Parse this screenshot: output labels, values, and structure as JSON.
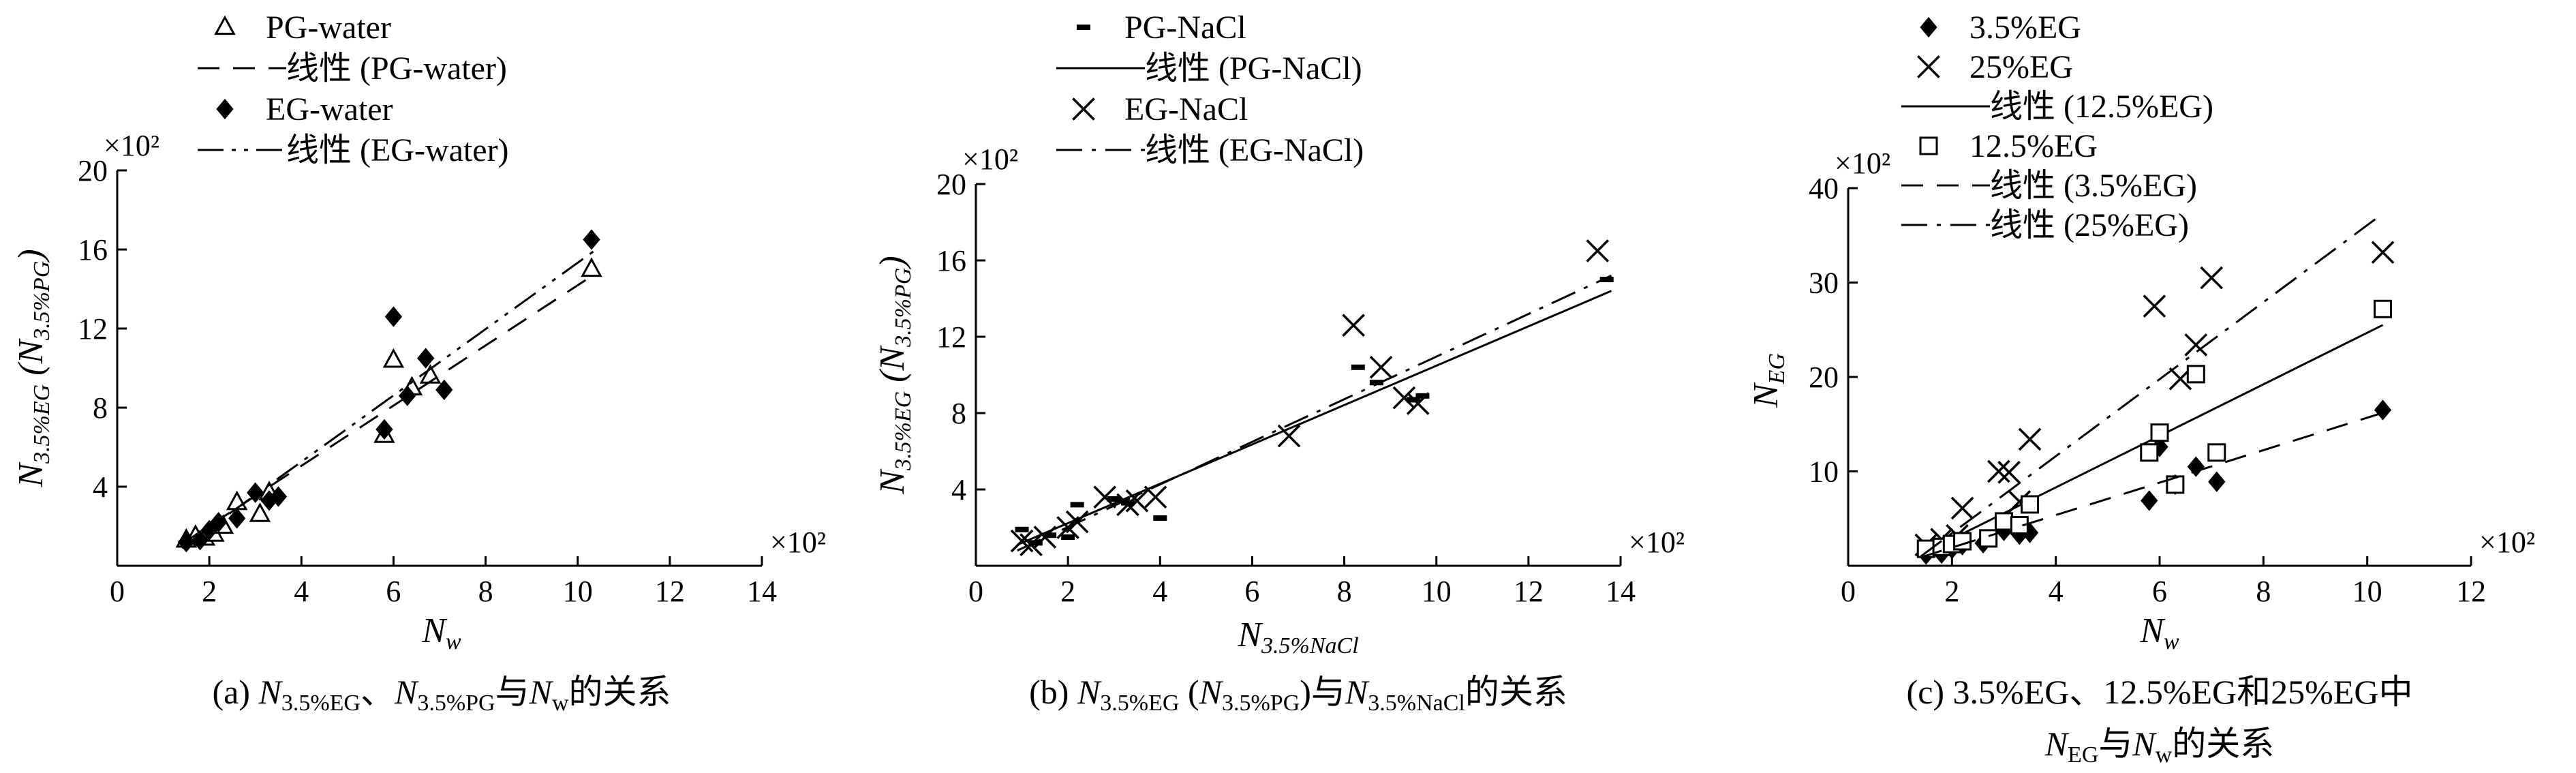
{
  "chart_data": [
    {
      "type": "scatter",
      "panel": "a",
      "caption": {
        "line1": [
          {
            "t": "(a) ",
            "s": "n"
          },
          {
            "t": "N",
            "s": "i"
          },
          {
            "t": "3.5%EG",
            "s": "sub"
          },
          {
            "t": "、",
            "s": "n"
          },
          {
            "t": "N",
            "s": "i"
          },
          {
            "t": "3.5%PG",
            "s": "sub"
          },
          {
            "t": "与",
            "s": "n"
          },
          {
            "t": "N",
            "s": "i"
          },
          {
            "t": "w",
            "s": "sub"
          },
          {
            "t": "的关系",
            "s": "n"
          }
        ]
      },
      "xlabel": {
        "main": "N",
        "sub": "w"
      },
      "ylabel": {
        "main": "N",
        "sub": "3.5%EG",
        "mid": " (",
        "main2": "N",
        "sub2": "3.5%PG",
        "end": ")"
      },
      "xlim": [
        0,
        14
      ],
      "ylim": [
        0,
        20
      ],
      "xticks": [
        "0",
        "2",
        "4",
        "6",
        "8",
        "10",
        "12",
        "14"
      ],
      "yticks": [
        "4",
        "8",
        "12",
        "16",
        "20"
      ],
      "x_multiplier": "×10²",
      "y_multiplier": "×10²",
      "series": [
        {
          "name": "PG-water",
          "marker": "triangle",
          "points": [
            [
              1.5,
              1.3
            ],
            [
              1.7,
              1.5
            ],
            [
              1.9,
              1.4
            ],
            [
              2.1,
              1.6
            ],
            [
              2.3,
              2.0
            ],
            [
              2.6,
              3.2
            ],
            [
              3.1,
              2.6
            ],
            [
              3.3,
              3.7
            ],
            [
              5.8,
              6.6
            ],
            [
              6.0,
              10.4
            ],
            [
              6.4,
              9.0
            ],
            [
              6.8,
              9.6
            ],
            [
              10.3,
              15.0
            ]
          ]
        },
        {
          "name": "线性 (PG-water)",
          "marker": "line-dash",
          "line": [
            [
              1.4,
              1.1
            ],
            [
              10.4,
              14.8
            ]
          ]
        },
        {
          "name": "EG-water",
          "marker": "diamond",
          "points": [
            [
              1.5,
              1.2
            ],
            [
              1.8,
              1.3
            ],
            [
              2.0,
              1.8
            ],
            [
              2.2,
              2.2
            ],
            [
              2.6,
              2.4
            ],
            [
              3.0,
              3.7
            ],
            [
              3.3,
              3.3
            ],
            [
              3.5,
              3.5
            ],
            [
              5.8,
              6.9
            ],
            [
              6.0,
              12.6
            ],
            [
              6.3,
              8.6
            ],
            [
              6.7,
              10.5
            ],
            [
              7.1,
              8.9
            ],
            [
              10.3,
              16.5
            ]
          ]
        },
        {
          "name": "线性 (EG-water)",
          "marker": "line-dashdotdot",
          "line": [
            [
              1.4,
              0.9
            ],
            [
              10.4,
              16.0
            ]
          ]
        }
      ]
    },
    {
      "type": "scatter",
      "panel": "b",
      "caption": {
        "line1": [
          {
            "t": "(b) ",
            "s": "n"
          },
          {
            "t": "N",
            "s": "i"
          },
          {
            "t": "3.5%EG",
            "s": "sub"
          },
          {
            "t": " (",
            "s": "n"
          },
          {
            "t": "N",
            "s": "i"
          },
          {
            "t": "3.5%PG",
            "s": "sub"
          },
          {
            "t": ")与",
            "s": "n"
          },
          {
            "t": "N",
            "s": "i"
          },
          {
            "t": "3.5%NaCl",
            "s": "sub"
          },
          {
            "t": "的关系",
            "s": "n"
          }
        ]
      },
      "xlabel": {
        "main": "N",
        "sub": "3.5%NaCl"
      },
      "ylabel": {
        "main": "N",
        "sub": "3.5%EG",
        "mid": " (",
        "main2": "N",
        "sub2": "3.5%PG",
        "end": ")"
      },
      "xlim": [
        0,
        14
      ],
      "ylim": [
        0,
        20
      ],
      "xticks": [
        "0",
        "2",
        "4",
        "6",
        "8",
        "10",
        "12",
        "14"
      ],
      "yticks": [
        "4",
        "8",
        "12",
        "16",
        "20"
      ],
      "x_multiplier": "×10²",
      "y_multiplier": "×10²",
      "series": [
        {
          "name": "PG-NaCl",
          "marker": "dash",
          "points": [
            [
              1.0,
              1.9
            ],
            [
              1.3,
              1.2
            ],
            [
              1.6,
              1.6
            ],
            [
              2.0,
              1.5
            ],
            [
              2.2,
              3.2
            ],
            [
              3.0,
              3.5
            ],
            [
              3.3,
              3.3
            ],
            [
              4.0,
              2.5
            ],
            [
              8.3,
              10.4
            ],
            [
              8.7,
              9.6
            ],
            [
              9.5,
              8.7
            ],
            [
              9.7,
              8.9
            ],
            [
              13.7,
              15.0
            ]
          ]
        },
        {
          "name": "线性 (PG-NaCl)",
          "marker": "line-solid",
          "line": [
            [
              0.9,
              1.1
            ],
            [
              13.8,
              14.4
            ]
          ]
        },
        {
          "name": "EG-NaCl",
          "marker": "cross",
          "points": [
            [
              1.0,
              1.3
            ],
            [
              1.2,
              1.1
            ],
            [
              1.5,
              1.5
            ],
            [
              2.0,
              2.0
            ],
            [
              2.2,
              2.3
            ],
            [
              2.8,
              3.6
            ],
            [
              3.3,
              3.2
            ],
            [
              3.5,
              3.4
            ],
            [
              3.9,
              3.6
            ],
            [
              6.8,
              6.8
            ],
            [
              8.2,
              12.6
            ],
            [
              8.8,
              10.4
            ],
            [
              9.3,
              8.8
            ],
            [
              9.6,
              8.5
            ],
            [
              13.5,
              16.5
            ]
          ]
        },
        {
          "name": "线性 (EG-NaCl)",
          "marker": "line-dashdot",
          "line": [
            [
              0.9,
              0.8
            ],
            [
              13.8,
              15.2
            ]
          ]
        }
      ]
    },
    {
      "type": "scatter",
      "panel": "c",
      "caption": {
        "line1": [
          {
            "t": "(c) 3.5%EG、12.5%EG和25%EG中",
            "s": "n"
          }
        ],
        "line2": [
          {
            "t": "N",
            "s": "i"
          },
          {
            "t": "EG",
            "s": "sub"
          },
          {
            "t": "与",
            "s": "n"
          },
          {
            "t": "N",
            "s": "i"
          },
          {
            "t": "w",
            "s": "sub"
          },
          {
            "t": "的关系",
            "s": "n"
          }
        ]
      },
      "xlabel": {
        "main": "N",
        "sub": "w"
      },
      "ylabel": {
        "main": "N",
        "sub": "EG"
      },
      "xlim": [
        0,
        12
      ],
      "ylim": [
        0,
        40
      ],
      "xticks": [
        "0",
        "2",
        "4",
        "6",
        "8",
        "10",
        "12"
      ],
      "yticks": [
        "10",
        "20",
        "30",
        "40"
      ],
      "x_multiplier": "×10²",
      "y_multiplier": "×10²",
      "series": [
        {
          "name": "3.5%EG",
          "marker": "diamond",
          "points": [
            [
              1.5,
              1.2
            ],
            [
              1.8,
              1.3
            ],
            [
              2.0,
              1.8
            ],
            [
              2.2,
              2.2
            ],
            [
              2.6,
              2.4
            ],
            [
              3.0,
              3.7
            ],
            [
              3.3,
              3.3
            ],
            [
              3.5,
              3.5
            ],
            [
              5.8,
              6.9
            ],
            [
              6.0,
              12.6
            ],
            [
              6.3,
              8.6
            ],
            [
              6.7,
              10.5
            ],
            [
              7.1,
              8.9
            ],
            [
              10.3,
              16.5
            ]
          ]
        },
        {
          "name": "25%EG",
          "marker": "cross",
          "points": [
            [
              1.5,
              2.2
            ],
            [
              1.8,
              2.8
            ],
            [
              2.1,
              3.2
            ],
            [
              2.2,
              6.1
            ],
            [
              2.9,
              10.0
            ],
            [
              3.1,
              9.9
            ],
            [
              3.3,
              6.8
            ],
            [
              3.5,
              13.4
            ],
            [
              5.9,
              27.5
            ],
            [
              6.4,
              19.8
            ],
            [
              6.7,
              23.4
            ],
            [
              7.0,
              30.5
            ],
            [
              10.3,
              33.2
            ]
          ]
        },
        {
          "name": "线性 (12.5%EG)",
          "marker": "line-solid",
          "line": [
            [
              1.4,
              1.2
            ],
            [
              10.3,
              25.5
            ]
          ]
        },
        {
          "name": "12.5%EG",
          "marker": "square",
          "points": [
            [
              1.5,
              1.8
            ],
            [
              1.8,
              2.0
            ],
            [
              2.0,
              2.3
            ],
            [
              2.2,
              2.6
            ],
            [
              2.7,
              2.9
            ],
            [
              3.0,
              4.7
            ],
            [
              3.3,
              4.3
            ],
            [
              3.5,
              6.5
            ],
            [
              5.8,
              12.0
            ],
            [
              6.0,
              14.1
            ],
            [
              6.3,
              8.6
            ],
            [
              6.7,
              20.3
            ],
            [
              7.1,
              12.0
            ],
            [
              10.3,
              27.2
            ]
          ]
        },
        {
          "name": "线性 (3.5%EG)",
          "marker": "line-dash",
          "line": [
            [
              1.4,
              0.9
            ],
            [
              10.3,
              16.2
            ]
          ]
        },
        {
          "name": "线性 (25%EG)",
          "marker": "line-dashdot",
          "line": [
            [
              1.4,
              1.0
            ],
            [
              10.3,
              37.3
            ]
          ]
        }
      ]
    }
  ]
}
